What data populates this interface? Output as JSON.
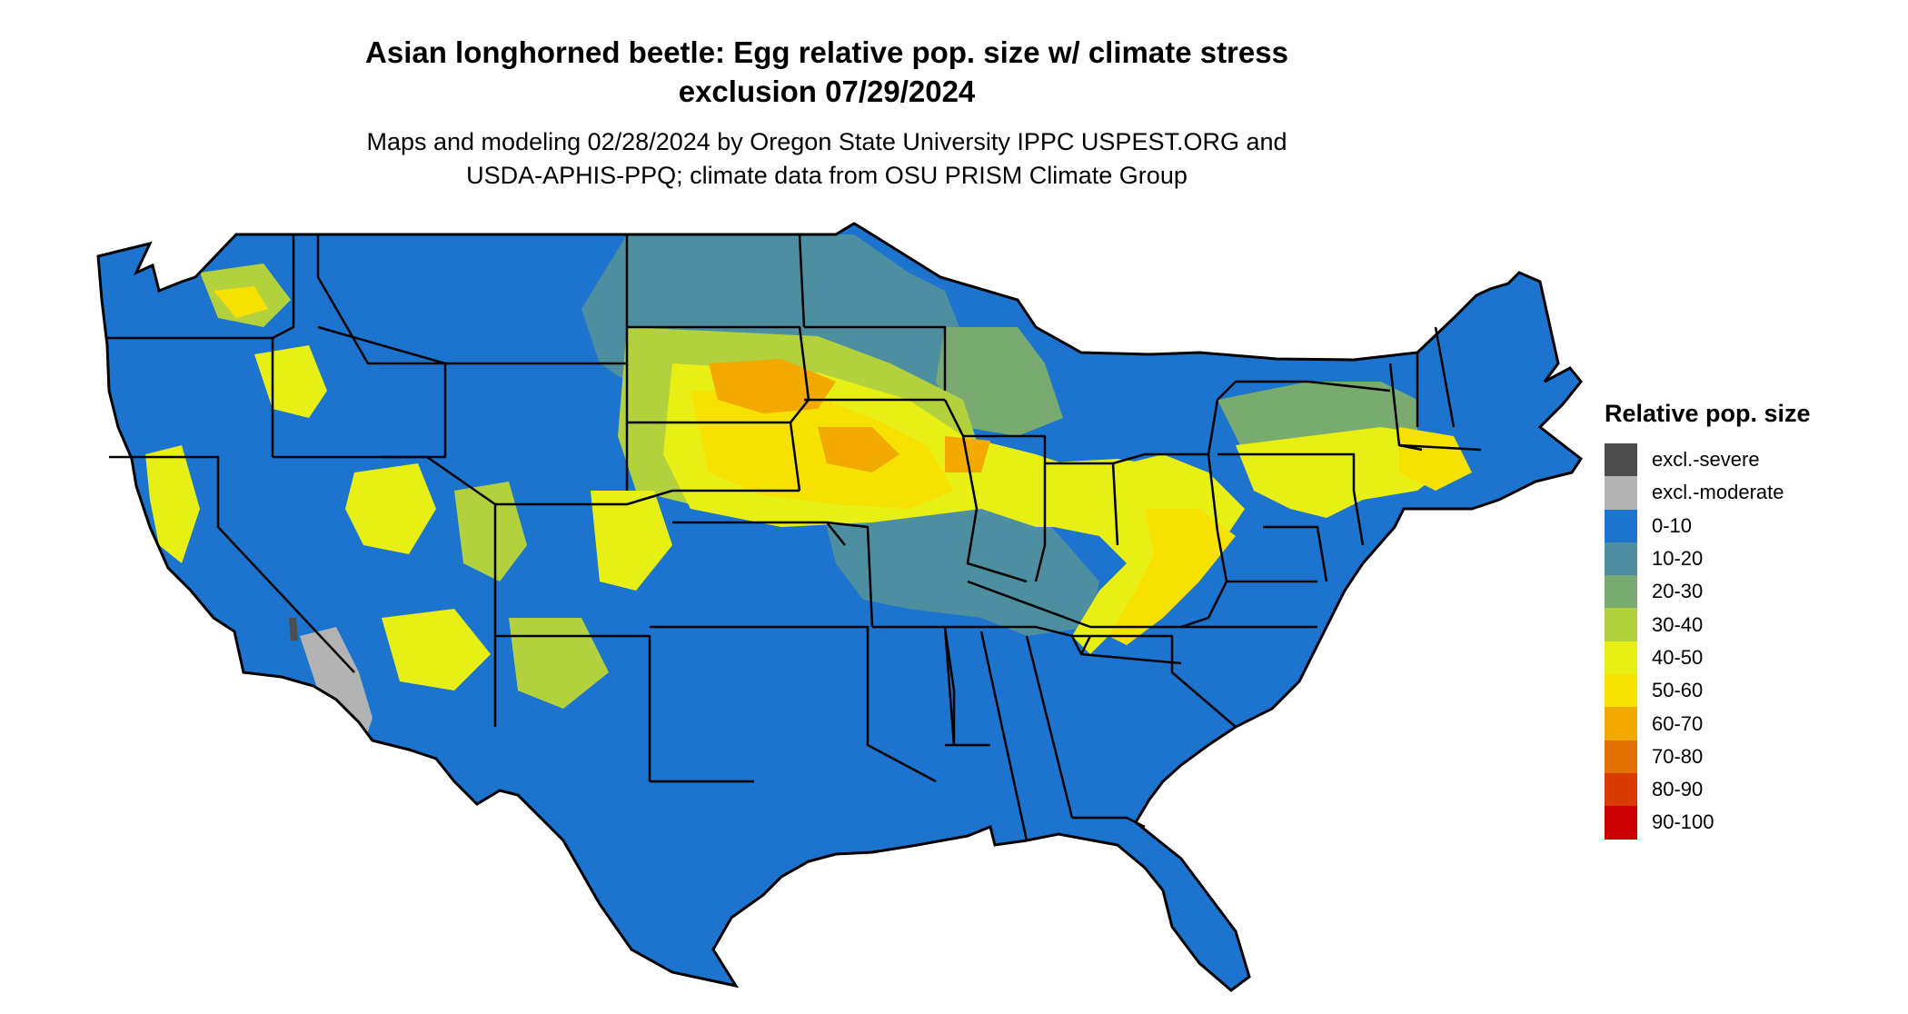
{
  "title": {
    "line1": "Asian longhorned beetle: Egg relative pop. size w/ climate stress",
    "line2": "exclusion 07/29/2024"
  },
  "subtitle": {
    "line1": "Maps and modeling 02/28/2024 by Oregon State University IPPC USPEST.ORG and",
    "line2": "USDA-APHIS-PPQ; climate data from OSU PRISM Climate Group"
  },
  "legend": {
    "title": "Relative pop. size",
    "items": [
      {
        "label": "excl.-severe",
        "color": "#4d4d4d"
      },
      {
        "label": "excl.-moderate",
        "color": "#b3b3b3"
      },
      {
        "label": "0-10",
        "color": "#1c74cf"
      },
      {
        "label": "10-20",
        "color": "#4d8fa0"
      },
      {
        "label": "20-30",
        "color": "#79aa70"
      },
      {
        "label": "30-40",
        "color": "#b3d13d"
      },
      {
        "label": "40-50",
        "color": "#e8ef14"
      },
      {
        "label": "50-60",
        "color": "#f7e100"
      },
      {
        "label": "60-70",
        "color": "#f2a900"
      },
      {
        "label": "70-80",
        "color": "#e07000"
      },
      {
        "label": "80-90",
        "color": "#d83a00"
      },
      {
        "label": "90-100",
        "color": "#cc0000"
      }
    ]
  }
}
